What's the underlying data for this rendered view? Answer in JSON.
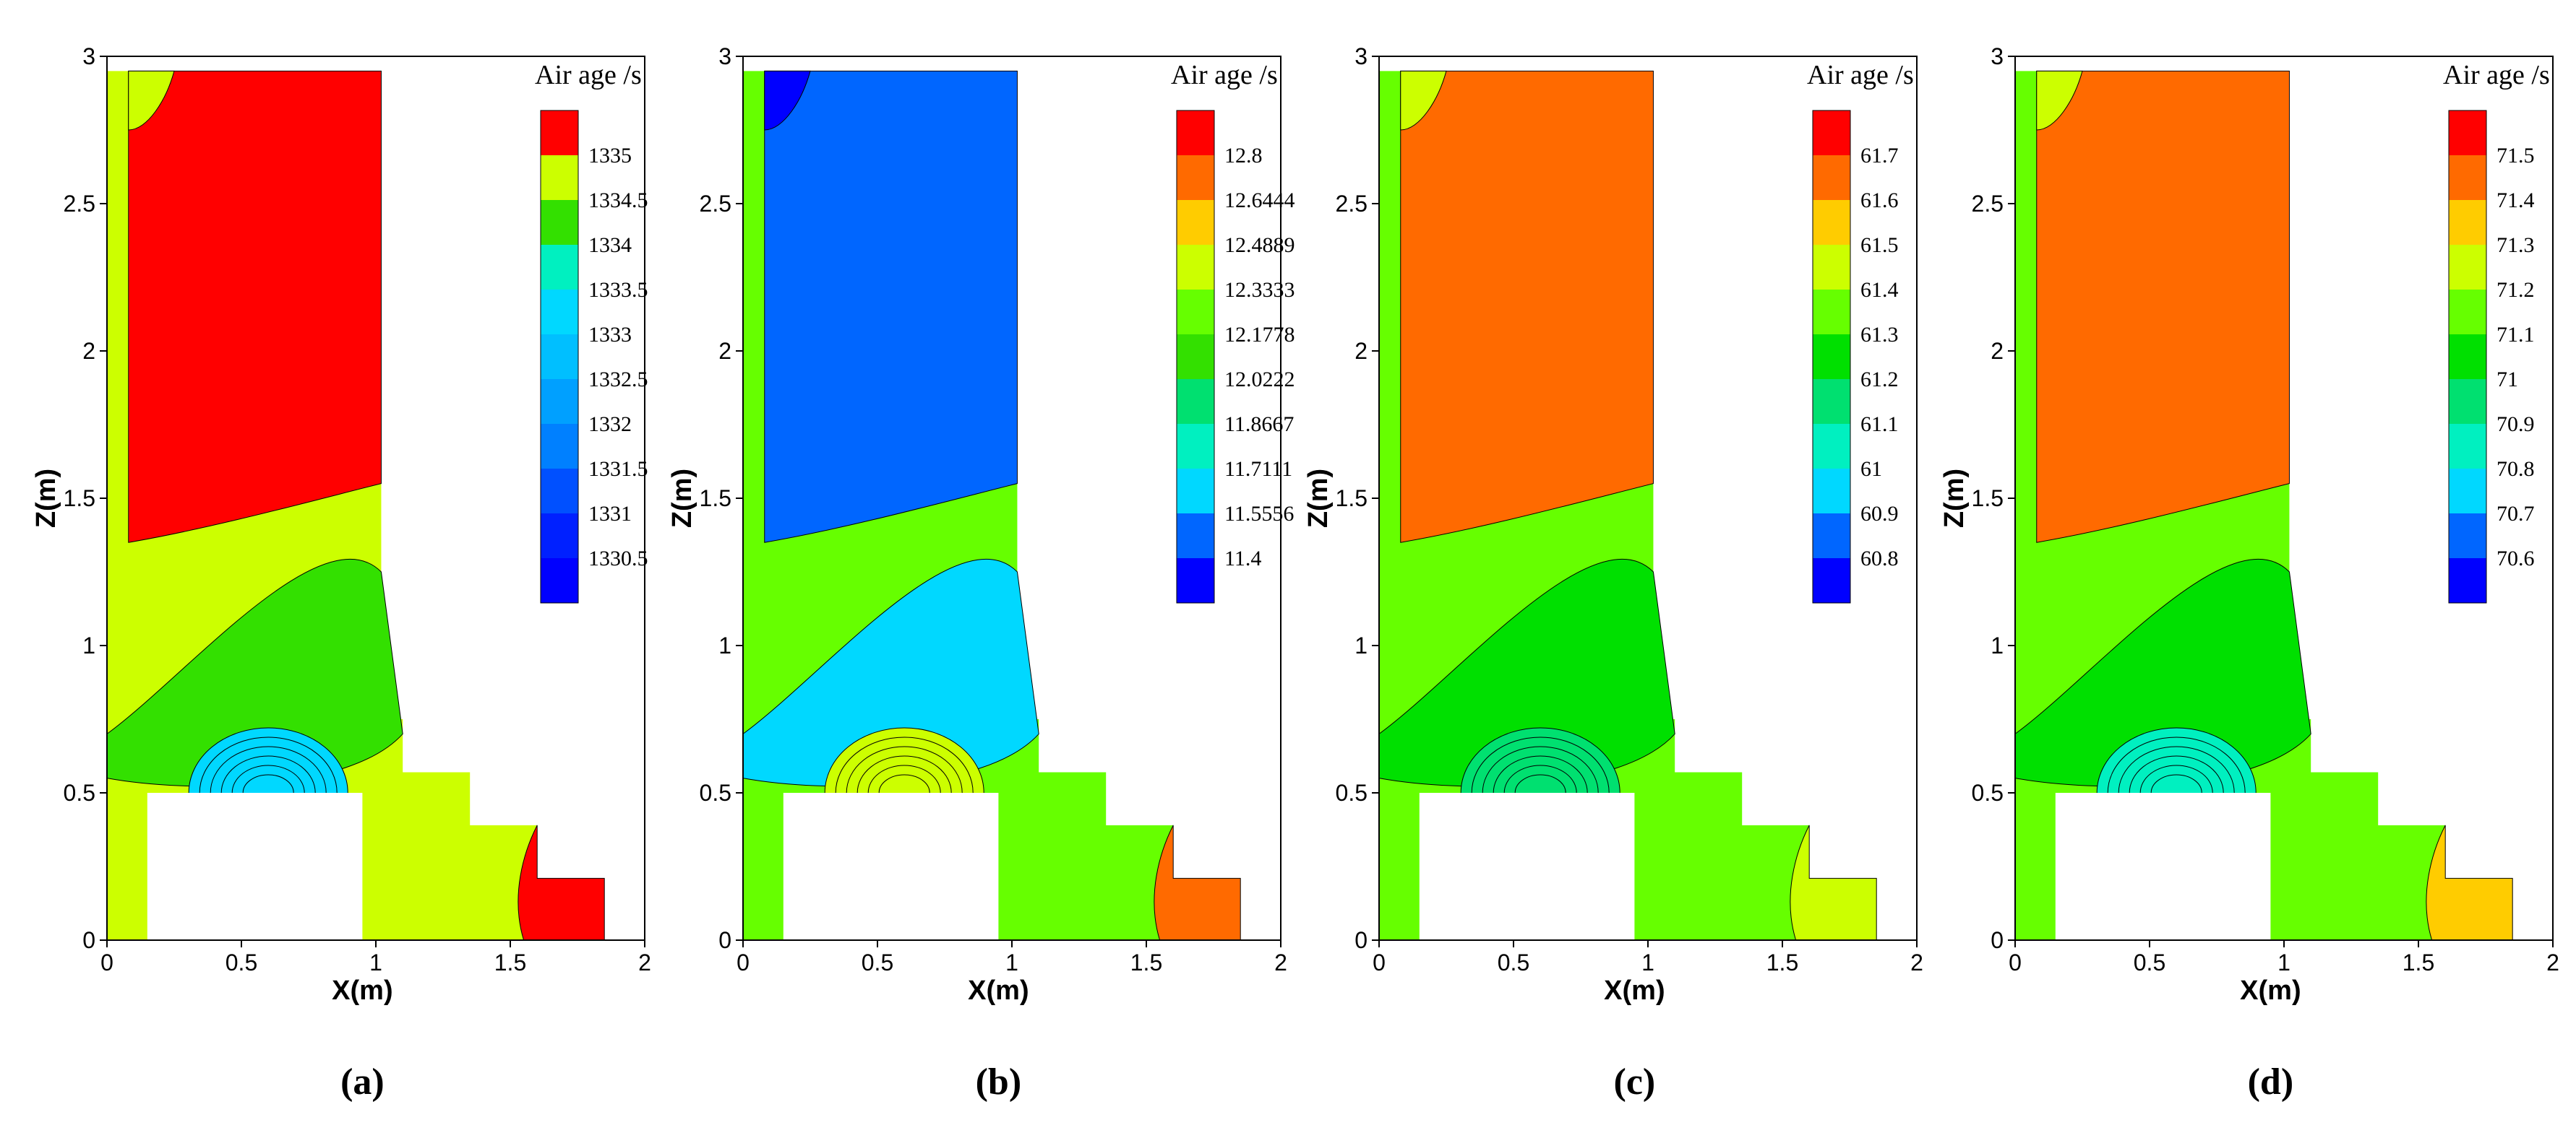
{
  "figure": {
    "legend_title": "Air age /s",
    "colorscale": [
      "#0000ff",
      "#0052ff",
      "#00a8ff",
      "#00d8ff",
      "#00f0c0",
      "#00e070",
      "#00e000",
      "#66ff00",
      "#ccff00",
      "#ffcc00",
      "#ff6a00",
      "#ff0000"
    ]
  },
  "chart_data": [
    {
      "type": "heatmap",
      "panel": "a",
      "caption": "(a)",
      "xlabel": "X(m)",
      "ylabel": "Z(m)",
      "xlim": [
        0,
        2
      ],
      "ylim": [
        0,
        3
      ],
      "xticks": [
        "0",
        "0.5",
        "1",
        "1.5",
        "2"
      ],
      "yticks": [
        "0",
        "0.5",
        "1",
        "1.5",
        "2",
        "2.5",
        "3"
      ],
      "legend_title": "Air age /s",
      "levels": [
        "1335",
        "1334.5",
        "1334",
        "1333.5",
        "1333",
        "1332.5",
        "1332",
        "1331.5",
        "1331",
        "1330.5"
      ],
      "level_colors": [
        "#ff0000",
        "#ccff00",
        "#33e000",
        "#00f0c0",
        "#00d8ff",
        "#00bfff",
        "#00a0ff",
        "#0080ff",
        "#0050ff",
        "#0020ff",
        "#0000ff"
      ],
      "regions": {
        "base": "#ccff00",
        "upper": "#ff0000",
        "middle": "#33e000",
        "source": "#00d8ff",
        "corner_top_left": "#ccff00",
        "step_right": "#ff0000"
      }
    },
    {
      "type": "heatmap",
      "panel": "b",
      "caption": "(b)",
      "xlabel": "X(m)",
      "ylabel": "Z(m)",
      "xlim": [
        0,
        2
      ],
      "ylim": [
        0,
        3
      ],
      "xticks": [
        "0",
        "0.5",
        "1",
        "1.5",
        "2"
      ],
      "yticks": [
        "0",
        "0.5",
        "1",
        "1.5",
        "2",
        "2.5",
        "3"
      ],
      "legend_title": "Air age /s",
      "levels": [
        "12.8",
        "12.6444",
        "12.4889",
        "12.3333",
        "12.1778",
        "12.0222",
        "11.8667",
        "11.7111",
        "11.5556",
        "11.4"
      ],
      "level_colors": [
        "#ff0000",
        "#ff6a00",
        "#ffcc00",
        "#ccff00",
        "#66ff00",
        "#33e000",
        "#00e070",
        "#00f0c0",
        "#00d8ff",
        "#0066ff",
        "#0000ff"
      ],
      "regions": {
        "base": "#66ff00",
        "upper": "#0066ff",
        "middle": "#00d8ff",
        "source": "#ccff00",
        "corner_top_left": "#0000ff",
        "step_right": "#ff6a00"
      }
    },
    {
      "type": "heatmap",
      "panel": "c",
      "caption": "(c)",
      "xlabel": "X(m)",
      "ylabel": "Z(m)",
      "xlim": [
        0,
        2
      ],
      "ylim": [
        0,
        3
      ],
      "xticks": [
        "0",
        "0.5",
        "1",
        "1.5",
        "2"
      ],
      "yticks": [
        "0",
        "0.5",
        "1",
        "1.5",
        "2",
        "2.5",
        "3"
      ],
      "legend_title": "Air age /s",
      "levels": [
        "61.7",
        "61.6",
        "61.5",
        "61.4",
        "61.3",
        "61.2",
        "61.1",
        "61",
        "60.9",
        "60.8"
      ],
      "level_colors": [
        "#ff0000",
        "#ff6a00",
        "#ffcc00",
        "#ccff00",
        "#66ff00",
        "#00e000",
        "#00e070",
        "#00f0c0",
        "#00d8ff",
        "#0066ff",
        "#0000ff"
      ],
      "regions": {
        "base": "#66ff00",
        "upper": "#ff6a00",
        "middle": "#00e000",
        "source": "#00e070",
        "corner_top_left": "#ccff00",
        "step_right": "#ccff00"
      }
    },
    {
      "type": "heatmap",
      "panel": "d",
      "caption": "(d)",
      "xlabel": "X(m)",
      "ylabel": "Z(m)",
      "xlim": [
        0,
        2
      ],
      "ylim": [
        0,
        3
      ],
      "xticks": [
        "0",
        "0.5",
        "1",
        "1.5",
        "2"
      ],
      "yticks": [
        "0",
        "0.5",
        "1",
        "1.5",
        "2",
        "2.5",
        "3"
      ],
      "legend_title": "Air age /s",
      "levels": [
        "71.5",
        "71.4",
        "71.3",
        "71.2",
        "71.1",
        "71",
        "70.9",
        "70.8",
        "70.7",
        "70.6"
      ],
      "level_colors": [
        "#ff0000",
        "#ff6a00",
        "#ffcc00",
        "#ccff00",
        "#66ff00",
        "#00e000",
        "#00e070",
        "#00f0c0",
        "#00d8ff",
        "#0066ff",
        "#0000ff"
      ],
      "regions": {
        "base": "#66ff00",
        "upper": "#ff6a00",
        "middle": "#00e000",
        "source": "#00f0c0",
        "corner_top_left": "#ccff00",
        "step_right": "#ffcc00"
      }
    }
  ]
}
